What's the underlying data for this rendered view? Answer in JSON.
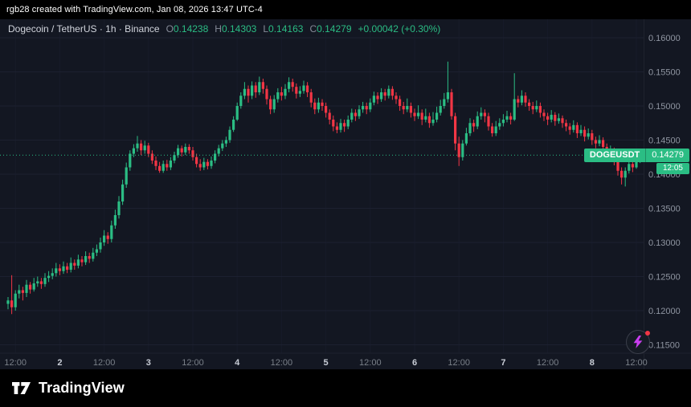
{
  "topbar": {
    "text": "rgb28 created with TradingView.com, Jan 08, 2026 13:47 UTC-4"
  },
  "header": {
    "title": "Dogecoin / TetherUS · 1h · Binance",
    "ohlc": {
      "o": {
        "label": "O",
        "value": "0.14238"
      },
      "h": {
        "label": "H",
        "value": "0.14303"
      },
      "l": {
        "label": "L",
        "value": "0.14163"
      },
      "c": {
        "label": "C",
        "value": "0.14279"
      }
    },
    "change": "+0.00042 (+0.30%)"
  },
  "price_badge": {
    "symbol": "DOGEUSDT",
    "price": "0.14279",
    "countdown": "12:05"
  },
  "footer": {
    "brand": "TradingView"
  },
  "colors": {
    "up": "#2bbd84",
    "down": "#f23645",
    "grid": "#1c2030",
    "axis_text": "#8f95a1",
    "axis_text_bright": "#c8cdd6",
    "separator": "#1e222d"
  },
  "chart_data": {
    "type": "candlestick",
    "title": "Dogecoin / TetherUS · 1h · Binance",
    "symbol": "DOGEUSDT",
    "interval": "1h",
    "exchange": "Binance",
    "last_price": 0.14279,
    "price_decimals": 5,
    "ylim": [
      0.115,
      0.1625
    ],
    "grid": true,
    "y_ticks": [
      "0.16000",
      "0.15500",
      "0.15000",
      "0.14500",
      "0.14000",
      "0.13500",
      "0.13000",
      "0.12500",
      "0.12000",
      "0.11500"
    ],
    "x_ticks": [
      {
        "i": 2,
        "label": "12:00"
      },
      {
        "i": 14,
        "label": "2"
      },
      {
        "i": 26,
        "label": "12:00"
      },
      {
        "i": 38,
        "label": "3"
      },
      {
        "i": 50,
        "label": "12:00"
      },
      {
        "i": 62,
        "label": "4"
      },
      {
        "i": 74,
        "label": "12:00"
      },
      {
        "i": 86,
        "label": "5"
      },
      {
        "i": 98,
        "label": "12:00"
      },
      {
        "i": 110,
        "label": "6"
      },
      {
        "i": 122,
        "label": "12:00"
      },
      {
        "i": 134,
        "label": "7"
      },
      {
        "i": 146,
        "label": "12:00"
      },
      {
        "i": 158,
        "label": "8"
      },
      {
        "i": 170,
        "label": "12:00"
      }
    ],
    "candles": [
      [
        0.121,
        0.122,
        0.1202,
        0.1215
      ],
      [
        0.1215,
        0.1252,
        0.1195,
        0.1205
      ],
      [
        0.1205,
        0.123,
        0.12,
        0.1225
      ],
      [
        0.1225,
        0.1238,
        0.1218,
        0.123
      ],
      [
        0.123,
        0.1235,
        0.1215,
        0.1226
      ],
      [
        0.1226,
        0.1245,
        0.122,
        0.1238
      ],
      [
        0.1238,
        0.1242,
        0.1225,
        0.1231
      ],
      [
        0.1231,
        0.1248,
        0.1228,
        0.124
      ],
      [
        0.124,
        0.125,
        0.1235,
        0.1243
      ],
      [
        0.1243,
        0.1248,
        0.1232,
        0.1239
      ],
      [
        0.1239,
        0.1255,
        0.1235,
        0.1248
      ],
      [
        0.1248,
        0.1258,
        0.1242,
        0.1251
      ],
      [
        0.1251,
        0.1262,
        0.1246,
        0.1255
      ],
      [
        0.1255,
        0.127,
        0.125,
        0.1262
      ],
      [
        0.1262,
        0.1268,
        0.1252,
        0.1258
      ],
      [
        0.1258,
        0.1272,
        0.1254,
        0.1265
      ],
      [
        0.1265,
        0.127,
        0.1255,
        0.126
      ],
      [
        0.126,
        0.1278,
        0.1256,
        0.127
      ],
      [
        0.127,
        0.1275,
        0.126,
        0.1266
      ],
      [
        0.1266,
        0.1282,
        0.1262,
        0.1275
      ],
      [
        0.1275,
        0.128,
        0.1265,
        0.1271
      ],
      [
        0.1271,
        0.1287,
        0.1267,
        0.128
      ],
      [
        0.128,
        0.1285,
        0.127,
        0.1276
      ],
      [
        0.1276,
        0.1292,
        0.1272,
        0.1285
      ],
      [
        0.1285,
        0.1297,
        0.128,
        0.129
      ],
      [
        0.129,
        0.1307,
        0.1285,
        0.13
      ],
      [
        0.13,
        0.1318,
        0.1295,
        0.131
      ],
      [
        0.131,
        0.1315,
        0.1298,
        0.1305
      ],
      [
        0.1305,
        0.1332,
        0.13,
        0.1325
      ],
      [
        0.1325,
        0.1348,
        0.132,
        0.134
      ],
      [
        0.134,
        0.1368,
        0.1335,
        0.136
      ],
      [
        0.136,
        0.1392,
        0.1355,
        0.1385
      ],
      [
        0.1385,
        0.1417,
        0.138,
        0.141
      ],
      [
        0.141,
        0.1435,
        0.1405,
        0.143
      ],
      [
        0.143,
        0.1444,
        0.1425,
        0.1438
      ],
      [
        0.1438,
        0.1456,
        0.1433,
        0.1445
      ],
      [
        0.1445,
        0.145,
        0.1428,
        0.1435
      ],
      [
        0.1435,
        0.1449,
        0.143,
        0.1442
      ],
      [
        0.1442,
        0.1446,
        0.1425,
        0.143
      ],
      [
        0.143,
        0.1435,
        0.1415,
        0.142
      ],
      [
        0.142,
        0.1426,
        0.1406,
        0.1412
      ],
      [
        0.1412,
        0.1418,
        0.1402,
        0.1405
      ],
      [
        0.1405,
        0.142,
        0.1402,
        0.1415
      ],
      [
        0.1415,
        0.1421,
        0.1405,
        0.141
      ],
      [
        0.141,
        0.1425,
        0.1406,
        0.142
      ],
      [
        0.142,
        0.1433,
        0.1416,
        0.1428
      ],
      [
        0.1428,
        0.1443,
        0.1424,
        0.1438
      ],
      [
        0.1438,
        0.1442,
        0.1426,
        0.1432
      ],
      [
        0.1432,
        0.1445,
        0.1428,
        0.144
      ],
      [
        0.144,
        0.1444,
        0.143,
        0.1435
      ],
      [
        0.1435,
        0.144,
        0.142,
        0.1425
      ],
      [
        0.1425,
        0.143,
        0.141,
        0.1415
      ],
      [
        0.1415,
        0.1422,
        0.1405,
        0.141
      ],
      [
        0.141,
        0.1424,
        0.1406,
        0.1418
      ],
      [
        0.1418,
        0.1422,
        0.1407,
        0.1412
      ],
      [
        0.1412,
        0.1426,
        0.1408,
        0.142
      ],
      [
        0.142,
        0.1435,
        0.1416,
        0.143
      ],
      [
        0.143,
        0.1443,
        0.1426,
        0.1438
      ],
      [
        0.1438,
        0.145,
        0.1434,
        0.1445
      ],
      [
        0.1445,
        0.1455,
        0.144,
        0.145
      ],
      [
        0.145,
        0.147,
        0.1446,
        0.1465
      ],
      [
        0.1465,
        0.1485,
        0.1462,
        0.148
      ],
      [
        0.148,
        0.1505,
        0.1478,
        0.15
      ],
      [
        0.15,
        0.152,
        0.1496,
        0.1515
      ],
      [
        0.1515,
        0.1535,
        0.151,
        0.1525
      ],
      [
        0.1525,
        0.153,
        0.1505,
        0.1515
      ],
      [
        0.1515,
        0.1536,
        0.151,
        0.153
      ],
      [
        0.153,
        0.1535,
        0.1512,
        0.152
      ],
      [
        0.152,
        0.1543,
        0.1516,
        0.1535
      ],
      [
        0.1535,
        0.154,
        0.1518,
        0.1525
      ],
      [
        0.1525,
        0.153,
        0.1502,
        0.151
      ],
      [
        0.151,
        0.1515,
        0.1488,
        0.1495
      ],
      [
        0.1495,
        0.1516,
        0.149,
        0.151
      ],
      [
        0.151,
        0.1526,
        0.1505,
        0.152
      ],
      [
        0.152,
        0.1528,
        0.1508,
        0.1515
      ],
      [
        0.1515,
        0.1532,
        0.151,
        0.1525
      ],
      [
        0.1525,
        0.1542,
        0.152,
        0.1535
      ],
      [
        0.1535,
        0.154,
        0.1521,
        0.1528
      ],
      [
        0.1528,
        0.1533,
        0.1511,
        0.1518
      ],
      [
        0.1518,
        0.1529,
        0.1513,
        0.1522
      ],
      [
        0.1522,
        0.1537,
        0.1518,
        0.153
      ],
      [
        0.153,
        0.1535,
        0.1513,
        0.152
      ],
      [
        0.152,
        0.1525,
        0.1498,
        0.1505
      ],
      [
        0.1505,
        0.1511,
        0.1488,
        0.1495
      ],
      [
        0.1495,
        0.1512,
        0.149,
        0.1505
      ],
      [
        0.1505,
        0.151,
        0.1493,
        0.15
      ],
      [
        0.15,
        0.1505,
        0.1483,
        0.149
      ],
      [
        0.149,
        0.1495,
        0.1473,
        0.148
      ],
      [
        0.148,
        0.1486,
        0.1463,
        0.147
      ],
      [
        0.147,
        0.1476,
        0.146,
        0.1465
      ],
      [
        0.1465,
        0.1481,
        0.1461,
        0.1475
      ],
      [
        0.1475,
        0.148,
        0.1462,
        0.147
      ],
      [
        0.147,
        0.1486,
        0.1466,
        0.148
      ],
      [
        0.148,
        0.1496,
        0.1476,
        0.149
      ],
      [
        0.149,
        0.1495,
        0.1478,
        0.1485
      ],
      [
        0.1485,
        0.1501,
        0.1481,
        0.1495
      ],
      [
        0.1495,
        0.1506,
        0.149,
        0.15
      ],
      [
        0.15,
        0.1505,
        0.1488,
        0.1495
      ],
      [
        0.1495,
        0.1511,
        0.1491,
        0.1505
      ],
      [
        0.1505,
        0.1521,
        0.1501,
        0.1515
      ],
      [
        0.1515,
        0.152,
        0.1503,
        0.151
      ],
      [
        0.151,
        0.1526,
        0.1506,
        0.152
      ],
      [
        0.152,
        0.1525,
        0.1508,
        0.1515
      ],
      [
        0.1515,
        0.153,
        0.1511,
        0.1525
      ],
      [
        0.1525,
        0.1529,
        0.1509,
        0.1515
      ],
      [
        0.1515,
        0.152,
        0.1503,
        0.151
      ],
      [
        0.151,
        0.1515,
        0.1493,
        0.15
      ],
      [
        0.15,
        0.1506,
        0.1488,
        0.1495
      ],
      [
        0.1495,
        0.1511,
        0.1491,
        0.15
      ],
      [
        0.15,
        0.1505,
        0.1483,
        0.149
      ],
      [
        0.149,
        0.1496,
        0.1478,
        0.1485
      ],
      [
        0.1485,
        0.1501,
        0.1481,
        0.149
      ],
      [
        0.149,
        0.1495,
        0.1472,
        0.148
      ],
      [
        0.148,
        0.1496,
        0.1476,
        0.1485
      ],
      [
        0.1485,
        0.149,
        0.1468,
        0.1475
      ],
      [
        0.1475,
        0.1491,
        0.1471,
        0.148
      ],
      [
        0.148,
        0.1499,
        0.1476,
        0.149
      ],
      [
        0.149,
        0.1509,
        0.1486,
        0.15
      ],
      [
        0.15,
        0.1519,
        0.1496,
        0.151
      ],
      [
        0.151,
        0.1565,
        0.1505,
        0.152
      ],
      [
        0.152,
        0.1525,
        0.148,
        0.1485
      ],
      [
        0.1485,
        0.149,
        0.1435,
        0.1445
      ],
      [
        0.1445,
        0.1455,
        0.1412,
        0.1425
      ],
      [
        0.1425,
        0.145,
        0.142,
        0.1445
      ],
      [
        0.1445,
        0.1468,
        0.1442,
        0.146
      ],
      [
        0.146,
        0.1482,
        0.1456,
        0.1475
      ],
      [
        0.1475,
        0.148,
        0.1462,
        0.147
      ],
      [
        0.147,
        0.1492,
        0.1466,
        0.1485
      ],
      [
        0.1485,
        0.1498,
        0.148,
        0.149
      ],
      [
        0.149,
        0.1495,
        0.1476,
        0.1485
      ],
      [
        0.1485,
        0.149,
        0.1464,
        0.147
      ],
      [
        0.147,
        0.1475,
        0.1455,
        0.146
      ],
      [
        0.146,
        0.1478,
        0.1456,
        0.147
      ],
      [
        0.147,
        0.1482,
        0.1465,
        0.1475
      ],
      [
        0.1475,
        0.1488,
        0.147,
        0.148
      ],
      [
        0.148,
        0.1493,
        0.1476,
        0.1485
      ],
      [
        0.1485,
        0.149,
        0.1473,
        0.148
      ],
      [
        0.148,
        0.1548,
        0.1478,
        0.151
      ],
      [
        0.151,
        0.1515,
        0.1498,
        0.1505
      ],
      [
        0.1505,
        0.1523,
        0.1501,
        0.1515
      ],
      [
        0.1515,
        0.152,
        0.1499,
        0.1505
      ],
      [
        0.1505,
        0.151,
        0.1493,
        0.15
      ],
      [
        0.15,
        0.1506,
        0.1488,
        0.1495
      ],
      [
        0.1495,
        0.1508,
        0.1491,
        0.15
      ],
      [
        0.15,
        0.1505,
        0.1483,
        0.149
      ],
      [
        0.149,
        0.1495,
        0.1478,
        0.1485
      ],
      [
        0.1485,
        0.149,
        0.1472,
        0.148
      ],
      [
        0.148,
        0.1494,
        0.1476,
        0.1487
      ],
      [
        0.1487,
        0.1491,
        0.1471,
        0.1478
      ],
      [
        0.1478,
        0.1489,
        0.1474,
        0.1482
      ],
      [
        0.1482,
        0.1486,
        0.1468,
        0.1475
      ],
      [
        0.1475,
        0.148,
        0.1463,
        0.147
      ],
      [
        0.147,
        0.1475,
        0.1458,
        0.1465
      ],
      [
        0.1465,
        0.1479,
        0.1461,
        0.1472
      ],
      [
        0.1472,
        0.1476,
        0.1453,
        0.146
      ],
      [
        0.146,
        0.1472,
        0.1456,
        0.1465
      ],
      [
        0.1465,
        0.147,
        0.1448,
        0.1455
      ],
      [
        0.1455,
        0.1467,
        0.1451,
        0.146
      ],
      [
        0.146,
        0.1465,
        0.1443,
        0.145
      ],
      [
        0.145,
        0.1455,
        0.1438,
        0.1445
      ],
      [
        0.1445,
        0.1457,
        0.1441,
        0.145
      ],
      [
        0.145,
        0.1454,
        0.1433,
        0.144
      ],
      [
        0.144,
        0.1445,
        0.1423,
        0.143
      ],
      [
        0.143,
        0.1442,
        0.1426,
        0.1435
      ],
      [
        0.1435,
        0.1439,
        0.1413,
        0.142
      ],
      [
        0.142,
        0.1425,
        0.1398,
        0.1405
      ],
      [
        0.1405,
        0.141,
        0.1385,
        0.1395
      ],
      [
        0.1395,
        0.141,
        0.1382,
        0.1405
      ],
      [
        0.1405,
        0.1421,
        0.1401,
        0.1415
      ],
      [
        0.1415,
        0.142,
        0.1403,
        0.141
      ],
      [
        0.141,
        0.1425,
        0.1408,
        0.14238
      ],
      [
        0.14238,
        0.14303,
        0.14163,
        0.14279
      ]
    ]
  }
}
